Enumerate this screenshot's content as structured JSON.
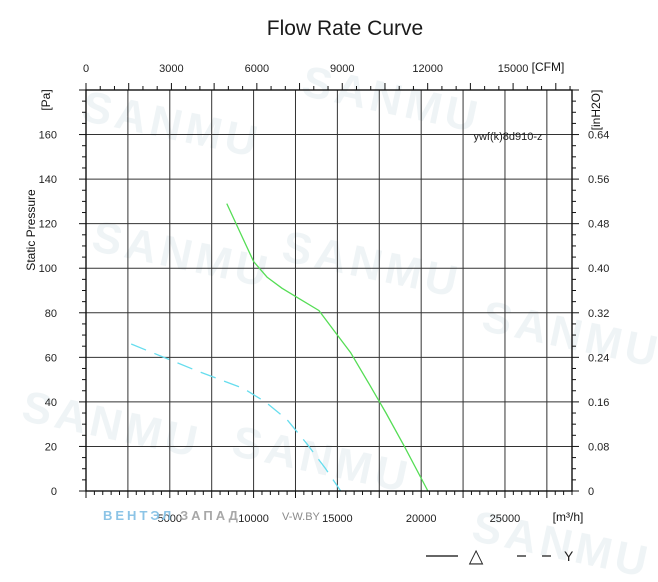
{
  "chart_data": {
    "type": "line",
    "title": "Flow Rate Curve",
    "ylabel": "Static Pressure",
    "y_unit": "[Pa]",
    "y2_unit": "[inH2O]",
    "x_unit": "[m³/h]",
    "x2_unit": "[CFM]",
    "model": "ywf(k)8d910-z",
    "xlim": [
      0,
      29000
    ],
    "ylim": [
      0,
      180
    ],
    "x_ticks": [
      5000,
      10000,
      15000,
      20000,
      25000
    ],
    "x_tick_labels": [
      "5000",
      "10000",
      "15000",
      "20000",
      "25000"
    ],
    "x2_ticks": [
      0,
      3000,
      6000,
      9000,
      12000,
      15000
    ],
    "x2_tick_labels": [
      "0",
      "3000",
      "6000",
      "9000",
      "12000",
      "15000"
    ],
    "y_ticks": [
      0,
      20,
      40,
      60,
      80,
      100,
      120,
      140,
      160
    ],
    "y_tick_labels": [
      "0",
      "20",
      "40",
      "60",
      "80",
      "100",
      "120",
      "140",
      "160"
    ],
    "y2_ticks": [
      0,
      0.08,
      0.16,
      0.24,
      0.32,
      0.4,
      0.48,
      0.56,
      0.64
    ],
    "y2_tick_labels": [
      "0",
      "0.08",
      "0.16",
      "0.24",
      "0.32",
      "0.40",
      "0.48",
      "0.56",
      "0.64"
    ],
    "grid": true,
    "legend": [
      "△",
      "Y"
    ],
    "series": [
      {
        "name": "△",
        "color": "#55dd55",
        "style": "solid",
        "x": [
          8400,
          9200,
          10000,
          10800,
          11700,
          12800,
          13900,
          14800,
          15800,
          16900,
          17900,
          19000,
          20400
        ],
        "y": [
          129,
          116,
          103,
          96,
          91,
          86,
          81,
          72,
          62,
          48,
          35,
          20,
          0
        ]
      },
      {
        "name": "Y",
        "color": "#66ddee",
        "style": "dashed",
        "x": [
          2700,
          4000,
          5300,
          6600,
          8000,
          9400,
          10700,
          12000,
          13200,
          14300,
          15200
        ],
        "y": [
          66,
          62,
          58,
          54,
          50,
          46,
          40,
          32,
          21,
          10,
          0
        ]
      }
    ]
  },
  "watermark": {
    "brand": "SANMU",
    "vendor_blue": "ВЕНТЭЛ",
    "vendor_gray": "ЗАПАД",
    "vendor_site": "V-W.BY"
  },
  "colors": {
    "frame": "#111111",
    "grid": "#333333",
    "dashed_legend": "#333333"
  }
}
